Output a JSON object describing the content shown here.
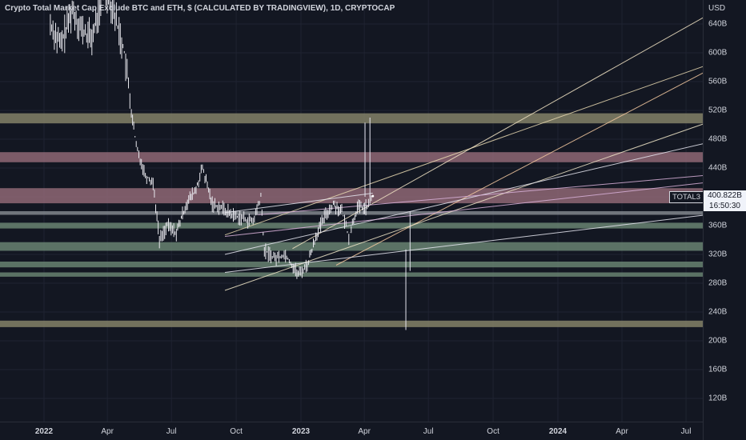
{
  "header": {
    "title": "Crypto Total Market Cap Exclude BTC and ETH, $ (CALCULATED BY TRADINGVIEW), 1D, CRYPTOCAP"
  },
  "price_axis": {
    "currency": "USD",
    "last_price": "400.822B",
    "countdown": "16:50:30",
    "symbol": "TOTAL3"
  },
  "chart_data": {
    "type": "line",
    "title": "Crypto Total Market Cap Exclude BTC and ETH, $ (CALCULATED BY TRADINGVIEW), 1D, CRYPTOCAP",
    "xlabel": "",
    "ylabel": "",
    "ylim": [
      90,
      680
    ],
    "y_ticks": [
      "640B",
      "600B",
      "560B",
      "520B",
      "480B",
      "440B",
      "400B",
      "360B",
      "320B",
      "280B",
      "240B",
      "200B",
      "160B",
      "120B"
    ],
    "x_ticks": [
      {
        "label": "2022",
        "bold": true
      },
      {
        "label": "Apr",
        "bold": false
      },
      {
        "label": "Jul",
        "bold": false
      },
      {
        "label": "Oct",
        "bold": false
      },
      {
        "label": "2023",
        "bold": true
      },
      {
        "label": "Apr",
        "bold": false
      },
      {
        "label": "Jul",
        "bold": false
      },
      {
        "label": "Oct",
        "bold": false
      },
      {
        "label": "2024",
        "bold": true
      },
      {
        "label": "Apr",
        "bold": false
      },
      {
        "label": "Jul",
        "bold": false
      }
    ],
    "series": [
      {
        "values": [
          {
            "date": "2022-01-10",
            "value": 640
          },
          {
            "date": "2022-01-25",
            "value": 610
          },
          {
            "date": "2022-02-10",
            "value": 660
          },
          {
            "date": "2022-02-25",
            "value": 630
          },
          {
            "date": "2022-03-10",
            "value": 620
          },
          {
            "date": "2022-03-28",
            "value": 690
          },
          {
            "date": "2022-04-10",
            "value": 660
          },
          {
            "date": "2022-04-25",
            "value": 600
          },
          {
            "date": "2022-05-05",
            "value": 520
          },
          {
            "date": "2022-05-12",
            "value": 470
          },
          {
            "date": "2022-05-25",
            "value": 430
          },
          {
            "date": "2022-06-05",
            "value": 420
          },
          {
            "date": "2022-06-14",
            "value": 340
          },
          {
            "date": "2022-06-25",
            "value": 360
          },
          {
            "date": "2022-07-08",
            "value": 350
          },
          {
            "date": "2022-07-22",
            "value": 390
          },
          {
            "date": "2022-08-05",
            "value": 410
          },
          {
            "date": "2022-08-14",
            "value": 440
          },
          {
            "date": "2022-08-28",
            "value": 390
          },
          {
            "date": "2022-09-10",
            "value": 385
          },
          {
            "date": "2022-09-25",
            "value": 375
          },
          {
            "date": "2022-10-10",
            "value": 370
          },
          {
            "date": "2022-10-25",
            "value": 365
          },
          {
            "date": "2022-11-05",
            "value": 400
          },
          {
            "date": "2022-11-10",
            "value": 325
          },
          {
            "date": "2022-11-25",
            "value": 315
          },
          {
            "date": "2022-12-10",
            "value": 320
          },
          {
            "date": "2022-12-28",
            "value": 292
          },
          {
            "date": "2023-01-10",
            "value": 305
          },
          {
            "date": "2023-01-22",
            "value": 345
          },
          {
            "date": "2023-02-05",
            "value": 375
          },
          {
            "date": "2023-02-16",
            "value": 390
          },
          {
            "date": "2023-02-28",
            "value": 380
          },
          {
            "date": "2023-03-10",
            "value": 345
          },
          {
            "date": "2023-03-22",
            "value": 385
          },
          {
            "date": "2023-04-05",
            "value": 385
          },
          {
            "date": "2023-04-13",
            "value": 401
          }
        ]
      }
    ],
    "zones": [
      {
        "low": 502,
        "high": 516,
        "color": "#8d8b6e"
      },
      {
        "low": 448,
        "high": 462,
        "color": "#9a6e7c"
      },
      {
        "low": 391,
        "high": 412,
        "color": "#9a6e7c"
      },
      {
        "low": 375,
        "high": 380,
        "color": "#8b8f96"
      },
      {
        "low": 356,
        "high": 364,
        "color": "#6f8c78"
      },
      {
        "low": 325,
        "high": 337,
        "color": "#6f8c78"
      },
      {
        "low": 302,
        "high": 310,
        "color": "#6f8c78"
      },
      {
        "low": 289,
        "high": 295,
        "color": "#6f8c78"
      },
      {
        "low": 219,
        "high": 228,
        "color": "#8d8b6e"
      }
    ],
    "trend_lines": [
      {
        "start": {
          "date": "2022-09-15",
          "value": 347
        },
        "end": {
          "date": "2024-07-31",
          "value": 583
        },
        "color": "#e8d8b0"
      },
      {
        "start": {
          "date": "2022-12-20",
          "value": 328
        },
        "end": {
          "date": "2024-07-31",
          "value": 652
        },
        "color": "#f2e4c4"
      },
      {
        "start": {
          "date": "2023-02-20",
          "value": 305
        },
        "end": {
          "date": "2024-07-31",
          "value": 575
        },
        "color": "#f5c9a0"
      },
      {
        "start": {
          "date": "2022-09-15",
          "value": 270
        },
        "end": {
          "date": "2024-07-31",
          "value": 503
        },
        "color": "#f0e6c8"
      },
      {
        "start": {
          "date": "2022-09-15",
          "value": 320
        },
        "end": {
          "date": "2024-07-31",
          "value": 475
        },
        "color": "#e6e6f0"
      },
      {
        "start": {
          "date": "2022-09-15",
          "value": 345
        },
        "end": {
          "date": "2024-07-31",
          "value": 420
        },
        "color": "#d8b0d8"
      },
      {
        "start": {
          "date": "2022-11-01",
          "value": 375
        },
        "end": {
          "date": "2024-07-31",
          "value": 430
        },
        "color": "#d8b0d8"
      },
      {
        "start": {
          "date": "2022-09-15",
          "value": 295
        },
        "end": {
          "date": "2024-07-31",
          "value": 375
        },
        "color": "#e6e6f0"
      },
      {
        "start": {
          "date": "2022-09-15",
          "value": 378
        },
        "end": {
          "date": "2023-04-13",
          "value": 405
        },
        "color": "#e6e6f0"
      }
    ],
    "vertical_lines": [
      {
        "date": "2023-04-02",
        "from": 400,
        "to": 503,
        "color": "#e6e6f0"
      },
      {
        "date": "2023-04-09",
        "from": 400,
        "to": 510,
        "color": "#e6e6f0"
      },
      {
        "date": "2023-06-05",
        "from": 297,
        "to": 380,
        "color": "#e6e6f0"
      },
      {
        "date": "2023-05-30",
        "from": 215,
        "to": 327,
        "color": "#e6e6f0"
      }
    ]
  }
}
